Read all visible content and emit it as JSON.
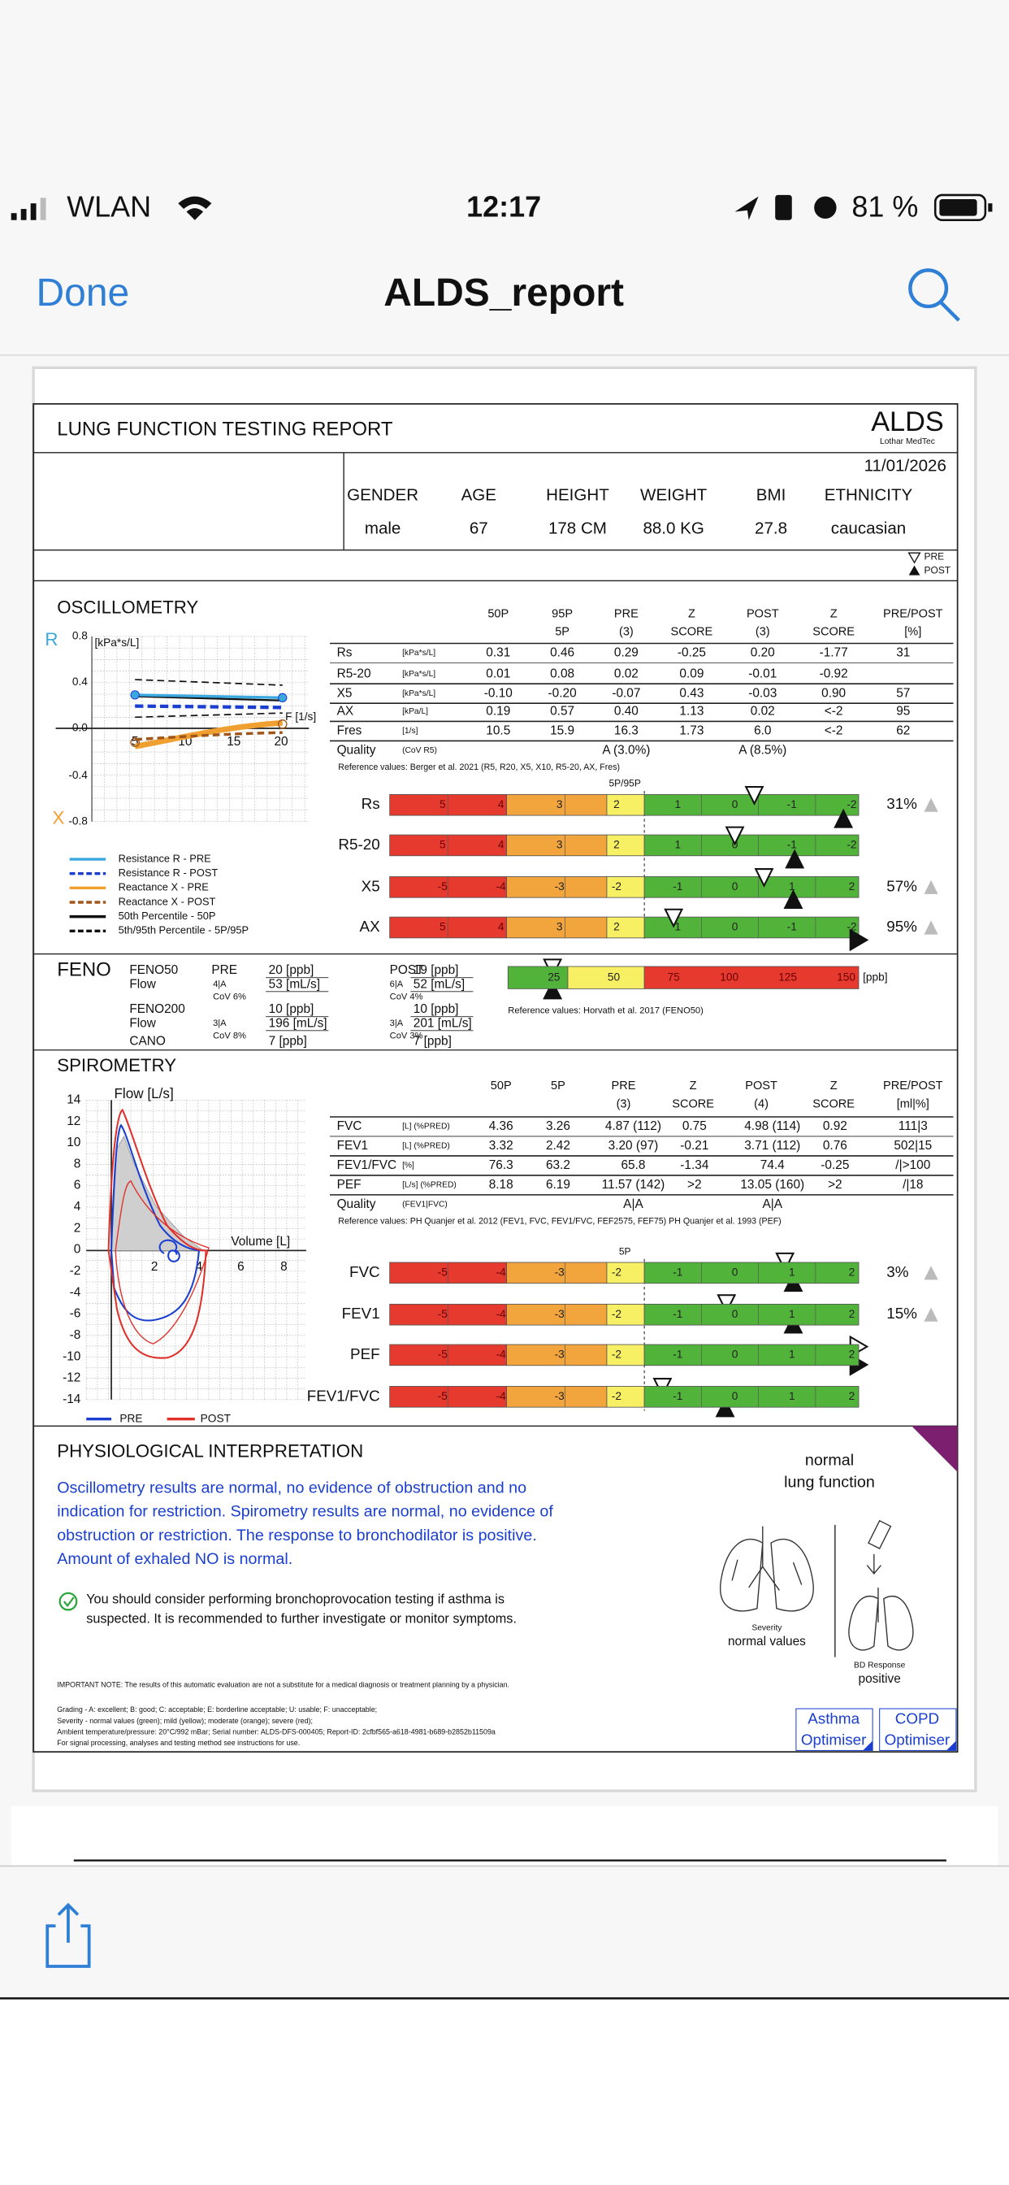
{
  "status_bar": {
    "carrier": "WLAN",
    "time": "12:17",
    "battery": "81 %"
  },
  "nav": {
    "done": "Done",
    "title": "ALDS_report"
  },
  "report": {
    "title": "LUNG FUNCTION TESTING REPORT",
    "logo": {
      "name": "ALDS",
      "company": "Lothar MedTec"
    },
    "date": "11/01/2026",
    "patient": {
      "headers": [
        "GENDER",
        "AGE",
        "HEIGHT",
        "WEIGHT",
        "BMI",
        "ETHNICITY"
      ],
      "values": [
        "male",
        "67",
        "178 CM",
        "88.0 KG",
        "27.8",
        "caucasian"
      ]
    },
    "marker_legend": {
      "pre": "PRE",
      "post": "POST"
    },
    "oscillometry": {
      "title": "OSCILLOMETRY",
      "chart": {
        "r_label": "R",
        "x_label": "X",
        "y_unit": "[kPa*s/L]",
        "x_unit": "F [1/s]",
        "yticks": [
          "0.8",
          "0.4",
          "0.0",
          "-0.4",
          "-0.8"
        ],
        "xticks": [
          "5",
          "10",
          "15",
          "20"
        ]
      },
      "legend": [
        "Resistance R - PRE",
        "Resistance R - POST",
        "Reactance X - PRE",
        "Reactance X - POST",
        "50th Percentile - 50P",
        "5th/95th Percentile - 5P/95P"
      ],
      "table": {
        "headers": [
          [
            "50P"
          ],
          [
            "95P",
            "5P"
          ],
          [
            "PRE",
            "(3)"
          ],
          [
            "Z",
            "SCORE"
          ],
          [
            "POST",
            "(3)"
          ],
          [
            "Z",
            "SCORE"
          ],
          [
            "PRE/POST",
            "[%]"
          ]
        ],
        "rows": [
          [
            "Rs",
            "[kPa*s/L]",
            "0.31",
            "0.46",
            "0.29",
            "-0.25",
            "0.20",
            "-1.77",
            "31"
          ],
          [
            "R5-20",
            "[kPa*s/L]",
            "0.01",
            "0.08",
            "0.02",
            "0.09",
            "-0.01",
            "-0.92"
          ],
          [
            "X5",
            "[kPa*s/L]",
            "-0.10",
            "-0.20",
            "-0.07",
            "0.43",
            "-0.03",
            "0.90",
            "57"
          ],
          [
            "AX",
            "[kPa/L]",
            "0.19",
            "0.57",
            "0.40",
            "1.13",
            "0.02",
            "<-2",
            "95"
          ],
          [
            "Fres",
            "[1/s]",
            "10.5",
            "15.9",
            "16.3",
            "1.73",
            "6.0",
            "<-2",
            "62"
          ]
        ],
        "quality": [
          "Quality",
          "(CoV R5)",
          "A (3.0%)",
          "A (8.5%)"
        ],
        "reference": "Reference values: Berger et al. 2021 (R5, R20, X5, X10, R5-20, AX, Fres)"
      },
      "zscores": {
        "range_label": "5P/95P",
        "bars": [
          {
            "label": "Rs",
            "scale": [
              "5",
              "4",
              "3",
              "2",
              "1",
              "0",
              "-1",
              "-2"
            ],
            "percent": "31%"
          },
          {
            "label": "R5-20",
            "scale": [
              "5",
              "4",
              "3",
              "2",
              "1",
              "0",
              "-1",
              "-2"
            ]
          },
          {
            "label": "X5",
            "scale": [
              "-5",
              "-4",
              "-3",
              "-2",
              "-1",
              "0",
              "1",
              "2"
            ],
            "percent": "57%"
          },
          {
            "label": "AX",
            "scale": [
              "5",
              "4",
              "3",
              "2",
              "1",
              "0",
              "-1",
              "-2"
            ],
            "percent": "95%"
          }
        ]
      }
    },
    "feno": {
      "title": "FENO",
      "pre_label": "PRE",
      "post_label": "POST",
      "feno50": {
        "label": "FENO50",
        "flow_label": "Flow",
        "pre": {
          "value": "20 [ppb]",
          "grade": "4|A",
          "flow": "53 [mL/s]",
          "cov": "CoV 6%"
        },
        "post": {
          "value": "19 [ppb]",
          "grade": "6|A",
          "flow": "52 [mL/s]",
          "cov": "CoV 4%"
        }
      },
      "feno200": {
        "label": "FENO200",
        "flow_label": "Flow",
        "pre": {
          "value": "10 [ppb]",
          "grade": "3|A",
          "flow": "196 [mL/s]",
          "cov": "CoV 8%"
        },
        "post": {
          "value": "10 [ppb]",
          "grade": "3|A",
          "flow": "201 [mL/s]",
          "cov": "CoV 3%"
        }
      },
      "cano": {
        "label": "CANO",
        "pre": "7 [ppb]",
        "post": "7 [ppb]"
      },
      "scale": [
        "25",
        "50",
        "75",
        "100",
        "125",
        "150"
      ],
      "unit": "[ppb]",
      "reference": "Reference values: Horvath et al. 2017 (FENO50)"
    },
    "spirometry": {
      "title": "SPIROMETRY",
      "chart": {
        "y_label": "Flow [L/s]",
        "x_label": "Volume [L]",
        "yticks": [
          "14",
          "12",
          "10",
          "8",
          "6",
          "4",
          "2",
          "0",
          "-2",
          "-4",
          "-6",
          "-8",
          "-10",
          "-12",
          "-14"
        ],
        "xticks": [
          "2",
          "4",
          "6",
          "8"
        ],
        "legend": [
          "PRE",
          "POST"
        ]
      },
      "table": {
        "headers": [
          [
            "50P"
          ],
          [
            "5P"
          ],
          [
            "PRE",
            "(3)"
          ],
          [
            "Z",
            "SCORE"
          ],
          [
            "POST",
            "(4)"
          ],
          [
            "Z",
            "SCORE"
          ],
          [
            "PRE/POST",
            "[ml|%]"
          ]
        ],
        "rows": [
          [
            "FVC",
            "[L] (%PRED)",
            "4.36",
            "3.26",
            "4.87 (112)",
            "0.75",
            "4.98 (114)",
            "0.92",
            "111|3"
          ],
          [
            "FEV1",
            "[L] (%PRED)",
            "3.32",
            "2.42",
            "3.20 (97)",
            "-0.21",
            "3.71 (112)",
            "0.76",
            "502|15"
          ],
          [
            "FEV1/FVC",
            "[%]",
            "76.3",
            "63.2",
            "65.8",
            "-1.34",
            "74.4",
            "-0.25",
            "/|>100"
          ],
          [
            "PEF",
            "[L/s] (%PRED)",
            "8.18",
            "6.19",
            "11.57 (142)",
            ">2",
            "13.05 (160)",
            ">2",
            "/|18"
          ]
        ],
        "quality": [
          "Quality",
          "(FEV1|FVC)",
          "A|A",
          "A|A"
        ],
        "reference": "Reference values: PH Quanjer et al. 2012 (FEV1, FVC, FEV1/FVC, FEF2575, FEF75) PH Quanjer et al. 1993 (PEF)"
      },
      "zscores": {
        "range_label": "5P",
        "bars": [
          {
            "label": "FVC",
            "scale": [
              "-5",
              "-4",
              "-3",
              "-2",
              "-1",
              "0",
              "1",
              "2"
            ],
            "percent": "3%"
          },
          {
            "label": "FEV1",
            "scale": [
              "-5",
              "-4",
              "-3",
              "-2",
              "-1",
              "0",
              "1",
              "2"
            ],
            "percent": "15%"
          },
          {
            "label": "PEF",
            "scale": [
              "-5",
              "-4",
              "-3",
              "-2",
              "-1",
              "0",
              "1",
              "2"
            ]
          },
          {
            "label": "FEV1/FVC",
            "scale": [
              "-5",
              "-4",
              "-3",
              "-2",
              "-1",
              "0",
              "1",
              "2"
            ]
          }
        ]
      }
    },
    "interpretation": {
      "title": "PHYSIOLOGICAL INTERPRETATION",
      "summary": [
        "Oscillometry results are normal, no evidence of obstruction and no",
        "indication for restriction. Spirometry results are normal, no evidence of",
        "obstruction or restriction. The response to bronchodilator is positive.",
        "Amount of exhaled NO is normal."
      ],
      "recommendation": [
        "You should consider performing bronchoprovocation testing if asthma is",
        "suspected. It is recommended to further investigate or monitor symptoms."
      ],
      "status": [
        "normal",
        "lung function"
      ],
      "severity": {
        "label": "Severity",
        "value": "normal values"
      },
      "bd_response": {
        "label": "BD Response",
        "value": "positive"
      },
      "note": "IMPORTANT NOTE: The results of this automatic evaluation are not a substitute for a medical diagnosis or treatment planning by a physician.",
      "footer": [
        "Grading - A: excellent; B: good; C: acceptable; E: borderline acceptable; U: usable; F: unacceptable;",
        "Severity - normal values (green); mild (yellow); moderate (orange); severe (red);",
        "Ambient temperature/pressure: 20°C/992 mBar; Serial number: ALDS-DFS-000405; Report-ID: 2cfbf565-a618-4981-b689-b2852b11509a",
        "For signal processing, analyses and testing method see instructions for use."
      ],
      "buttons": [
        [
          "Asthma",
          "Optimiser"
        ],
        [
          "COPD",
          "Optimiser"
        ]
      ]
    }
  }
}
